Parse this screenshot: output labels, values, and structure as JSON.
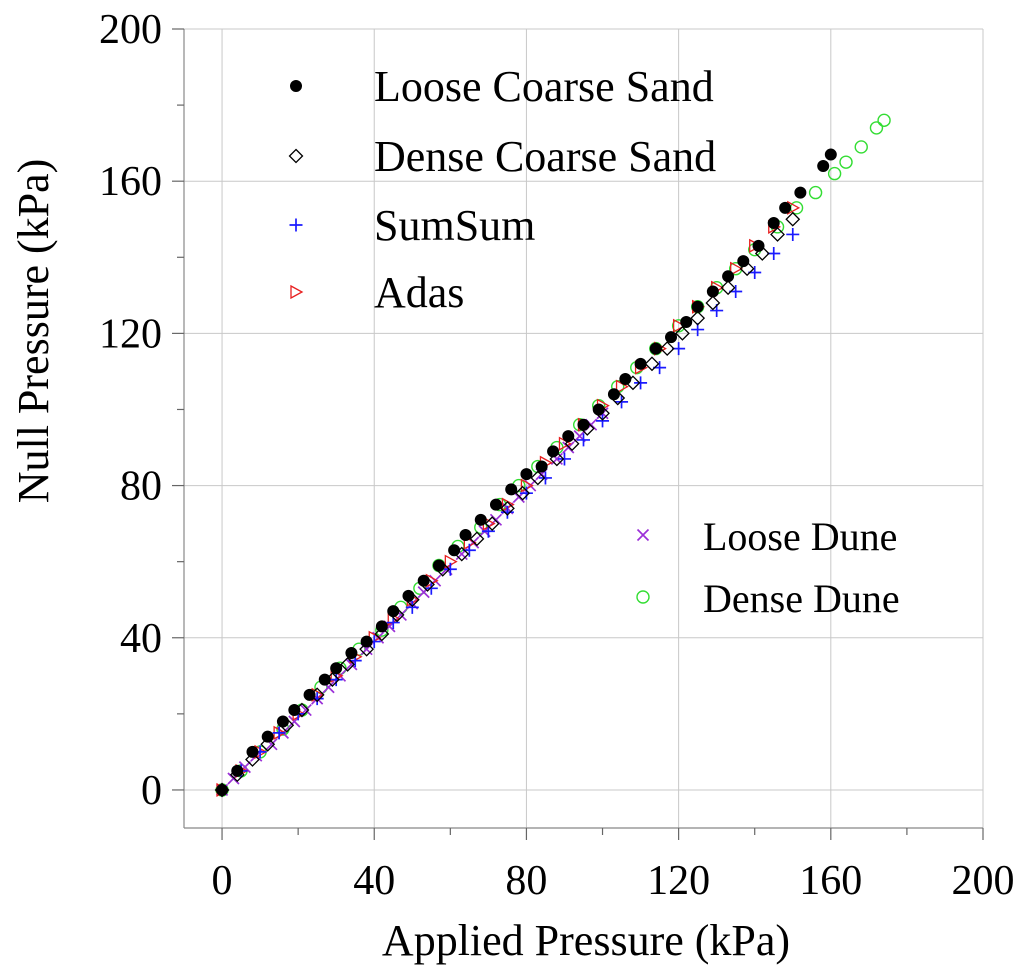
{
  "chart_data": {
    "type": "scatter",
    "title": "",
    "xlabel": "Applied Pressure (kPa)",
    "ylabel": "Null Pressure (kPa)",
    "xlim": [
      -10,
      200
    ],
    "ylim": [
      -10,
      200
    ],
    "xticks": [
      0,
      40,
      80,
      120,
      160,
      200
    ],
    "yticks": [
      0,
      40,
      80,
      120,
      160,
      200
    ],
    "grid": true,
    "legend_groups": [
      {
        "placement": "top-left",
        "entries": [
          "Loose Coarse Sand",
          "Dense Coarse Sand",
          "SumSum",
          "Adas"
        ]
      },
      {
        "placement": "center-right",
        "entries": [
          "Loose Dune",
          "Dense Dune"
        ]
      }
    ],
    "series": [
      {
        "name": "Loose Coarse Sand",
        "marker": "filled-circle",
        "color": "#000000",
        "x": [
          0,
          4,
          8,
          12,
          16,
          19,
          23,
          27,
          30,
          34,
          38,
          42,
          45,
          49,
          53,
          57,
          61,
          64,
          68,
          72,
          76,
          80,
          84,
          87,
          91,
          95,
          99,
          103,
          106,
          110,
          114,
          118,
          122,
          125,
          129,
          133,
          137,
          141,
          145,
          148,
          152,
          158,
          160
        ],
        "y": [
          0,
          5,
          10,
          14,
          18,
          21,
          25,
          29,
          32,
          36,
          39,
          43,
          47,
          51,
          55,
          59,
          63,
          67,
          71,
          75,
          79,
          83,
          85,
          89,
          93,
          96,
          100,
          104,
          108,
          112,
          116,
          119,
          123,
          127,
          131,
          135,
          139,
          143,
          149,
          153,
          157,
          164,
          167
        ]
      },
      {
        "name": "Dense Coarse Sand",
        "marker": "open-diamond",
        "color": "#000000",
        "x": [
          0,
          4,
          8,
          12,
          17,
          21,
          25,
          29,
          33,
          38,
          42,
          46,
          50,
          54,
          58,
          63,
          67,
          71,
          75,
          79,
          83,
          88,
          92,
          96,
          100,
          104,
          108,
          113,
          117,
          121,
          125,
          129,
          133,
          138,
          142,
          146,
          150
        ],
        "y": [
          0,
          4,
          8,
          12,
          17,
          21,
          25,
          29,
          33,
          37,
          41,
          46,
          50,
          54,
          58,
          62,
          66,
          70,
          74,
          78,
          82,
          87,
          91,
          95,
          99,
          103,
          107,
          112,
          116,
          120,
          124,
          128,
          132,
          137,
          141,
          146,
          150
        ]
      },
      {
        "name": "SumSum",
        "marker": "plus",
        "color": "#1a1aff",
        "x": [
          0,
          5,
          10,
          15,
          20,
          25,
          30,
          35,
          40,
          45,
          50,
          55,
          60,
          65,
          70,
          75,
          80,
          85,
          90,
          95,
          100,
          105,
          110,
          115,
          120,
          125,
          130,
          135,
          140,
          145,
          150
        ],
        "y": [
          0,
          5,
          10,
          15,
          20,
          24,
          29,
          34,
          39,
          44,
          48,
          53,
          58,
          63,
          68,
          73,
          78,
          82,
          87,
          92,
          97,
          102,
          107,
          111,
          116,
          121,
          126,
          131,
          136,
          141,
          146
        ]
      },
      {
        "name": "Adas",
        "marker": "open-triangle-right",
        "color": "#e82020",
        "x": [
          0,
          5,
          10,
          15,
          20,
          25,
          30,
          35,
          40,
          45,
          50,
          55,
          60,
          65,
          70,
          75,
          80,
          85,
          90,
          95,
          100,
          105,
          110,
          115,
          120,
          125,
          130,
          135,
          140,
          145,
          150
        ],
        "y": [
          0,
          5,
          10,
          15,
          20,
          25,
          30,
          35,
          40,
          45,
          50,
          55,
          60,
          65,
          70,
          75,
          80,
          86,
          91,
          96,
          101,
          106,
          111,
          116,
          122,
          127,
          132,
          137,
          143,
          148,
          153
        ]
      },
      {
        "name": "Loose Dune",
        "marker": "x",
        "color": "#9b30d8",
        "x": [
          0,
          3,
          6,
          9,
          13,
          16,
          19,
          22,
          25,
          28,
          31,
          34,
          38,
          41,
          44,
          47,
          50,
          53,
          56,
          59,
          63,
          66,
          69,
          72,
          75,
          78,
          81,
          84,
          88,
          91,
          94,
          97,
          100
        ],
        "y": [
          0,
          3,
          6,
          9,
          12,
          15,
          18,
          21,
          24,
          27,
          30,
          33,
          37,
          40,
          43,
          46,
          49,
          52,
          55,
          58,
          62,
          65,
          68,
          71,
          74,
          77,
          80,
          83,
          87,
          90,
          93,
          96,
          99
        ]
      },
      {
        "name": "Dense Dune",
        "marker": "open-circle",
        "color": "#33dd33",
        "x": [
          0,
          5,
          10,
          16,
          21,
          26,
          31,
          36,
          42,
          47,
          52,
          57,
          62,
          68,
          73,
          78,
          83,
          88,
          94,
          99,
          104,
          109,
          114,
          120,
          125,
          130,
          135,
          140,
          146,
          151,
          156,
          161,
          164,
          168,
          172,
          174
        ],
        "y": [
          0,
          5,
          10,
          16,
          21,
          27,
          32,
          37,
          42,
          48,
          53,
          59,
          64,
          69,
          75,
          80,
          85,
          90,
          96,
          101,
          106,
          111,
          116,
          122,
          127,
          132,
          137,
          142,
          148,
          153,
          157,
          162,
          165,
          169,
          174,
          176
        ]
      }
    ]
  }
}
